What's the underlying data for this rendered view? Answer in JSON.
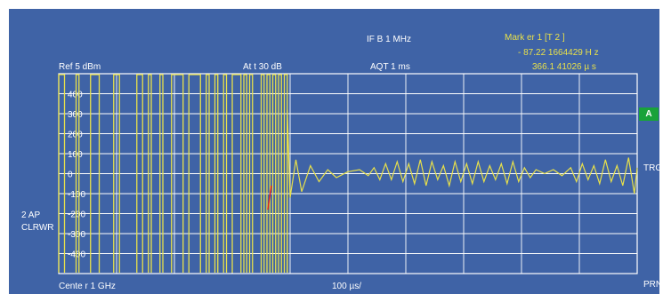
{
  "header": {
    "ifb": "IF B 1 MHz",
    "ref": "Ref    5   dBm",
    "att": "At t    30 dB",
    "aqt": "AQT  1 ms"
  },
  "marker": {
    "label": "Mark er   1 [T  2 ]",
    "level": "- 87.22 1664429 H z",
    "time": "366.1 41026  µ s"
  },
  "left_panel": {
    "ap": "2 AP",
    "mode": "CLRWR"
  },
  "right_panel": {
    "badge": "A",
    "trg": "TRG",
    "prn": "PRN"
  },
  "footer": {
    "center": "Cente r 1   GHz",
    "span": "100 µs/"
  },
  "chart_data": {
    "type": "line",
    "title": "",
    "xlabel": "",
    "ylabel": "",
    "y_tick_labels": [
      "400",
      "300",
      "200",
      "100",
      "0",
      "-100",
      "-200",
      "-300",
      "-400"
    ],
    "x_divisions": 10,
    "y_divisions": 10,
    "grid": true,
    "trace_color": "#e8e04a",
    "pulse_segments": [
      [
        0,
        0.1
      ],
      [
        0.3,
        0.35
      ],
      [
        0.55,
        0.7
      ],
      [
        0.95,
        1.05
      ],
      [
        1.35,
        1.45
      ],
      [
        1.55,
        1.6
      ],
      [
        1.75,
        1.8
      ],
      [
        1.95,
        2.15
      ],
      [
        2.25,
        2.45
      ],
      [
        2.55,
        2.6
      ],
      [
        2.7,
        2.75
      ],
      [
        2.85,
        2.9
      ],
      [
        3.0,
        3.15
      ],
      [
        3.2,
        3.25
      ],
      [
        3.3,
        3.35
      ],
      [
        3.5,
        3.55
      ],
      [
        3.6,
        3.65
      ],
      [
        3.7,
        3.75
      ],
      [
        3.8,
        3.85
      ],
      [
        3.9,
        3.95
      ]
    ],
    "peak_time_div": 3.95,
    "peak_value": 320,
    "ringing": [
      {
        "t": 4.0,
        "v": -120
      },
      {
        "t": 4.1,
        "v": 70
      },
      {
        "t": 4.2,
        "v": -90
      },
      {
        "t": 4.35,
        "v": 40
      },
      {
        "t": 4.5,
        "v": -40
      },
      {
        "t": 4.65,
        "v": 20
      },
      {
        "t": 4.8,
        "v": -20
      },
      {
        "t": 5.0,
        "v": 10
      },
      {
        "t": 5.2,
        "v": 20
      },
      {
        "t": 5.35,
        "v": -10
      },
      {
        "t": 5.45,
        "v": 30
      },
      {
        "t": 5.55,
        "v": -30
      },
      {
        "t": 5.65,
        "v": 50
      },
      {
        "t": 5.75,
        "v": -30
      },
      {
        "t": 5.85,
        "v": 60
      },
      {
        "t": 5.95,
        "v": -40
      },
      {
        "t": 6.05,
        "v": 50
      },
      {
        "t": 6.15,
        "v": -50
      },
      {
        "t": 6.25,
        "v": 70
      },
      {
        "t": 6.35,
        "v": -60
      },
      {
        "t": 6.45,
        "v": 60
      },
      {
        "t": 6.55,
        "v": -30
      },
      {
        "t": 6.65,
        "v": 40
      },
      {
        "t": 6.75,
        "v": -60
      },
      {
        "t": 6.85,
        "v": 60
      },
      {
        "t": 6.95,
        "v": -40
      },
      {
        "t": 7.05,
        "v": 50
      },
      {
        "t": 7.15,
        "v": -50
      },
      {
        "t": 7.25,
        "v": 60
      },
      {
        "t": 7.35,
        "v": -40
      },
      {
        "t": 7.45,
        "v": 40
      },
      {
        "t": 7.55,
        "v": -30
      },
      {
        "t": 7.65,
        "v": 50
      },
      {
        "t": 7.75,
        "v": -50
      },
      {
        "t": 7.85,
        "v": 60
      },
      {
        "t": 7.95,
        "v": -40
      },
      {
        "t": 8.05,
        "v": 30
      },
      {
        "t": 8.15,
        "v": -20
      },
      {
        "t": 8.25,
        "v": 20
      },
      {
        "t": 8.4,
        "v": 0
      },
      {
        "t": 8.55,
        "v": 20
      },
      {
        "t": 8.7,
        "v": -10
      },
      {
        "t": 8.85,
        "v": 30
      },
      {
        "t": 8.95,
        "v": -40
      },
      {
        "t": 9.05,
        "v": 50
      },
      {
        "t": 9.15,
        "v": -30
      },
      {
        "t": 9.25,
        "v": 40
      },
      {
        "t": 9.35,
        "v": -50
      },
      {
        "t": 9.45,
        "v": 70
      },
      {
        "t": 9.55,
        "v": -40
      },
      {
        "t": 9.65,
        "v": 40
      },
      {
        "t": 9.75,
        "v": -60
      },
      {
        "t": 9.85,
        "v": 80
      },
      {
        "t": 9.95,
        "v": -100
      },
      {
        "t": 10.0,
        "v": 30
      }
    ],
    "marker_time_div": 3.66
  }
}
